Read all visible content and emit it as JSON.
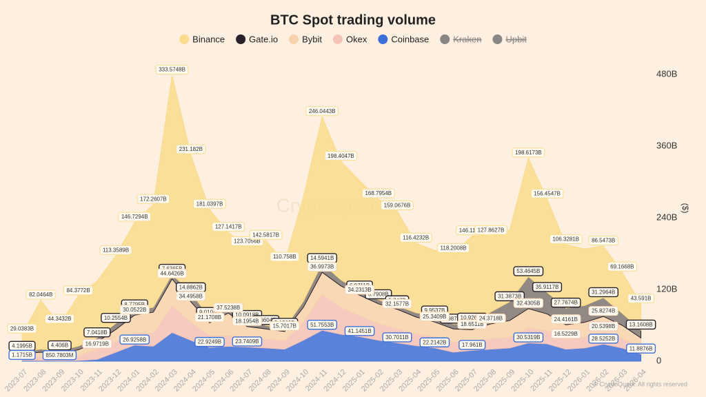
{
  "chart_data": {
    "type": "stacked_area",
    "title": "BTC Spot trading volume",
    "watermark": "CryptoQuant",
    "copyright": "© CryptoQuant. All rights reserved",
    "y_axis_label": "($)",
    "categories": [
      "2023-07",
      "2023-08",
      "2023-09",
      "2023-10",
      "2023-11",
      "2023-12",
      "2024-01",
      "2024-02",
      "2024-03",
      "2024-04",
      "2024-05",
      "2024-06",
      "2024-07",
      "2024-08",
      "2024-09",
      "2024-10",
      "2024-11",
      "2024-12",
      "2025-01",
      "2025-02",
      "2025-03",
      "2025-04",
      "2025-05",
      "2025-06",
      "2025-07",
      "2025-08",
      "2025-09",
      "2025-10",
      "2025-11",
      "2025-12",
      "2026-01",
      "2026-02",
      "2026-03",
      "2026-04"
    ],
    "series": [
      {
        "name": "Binance",
        "color": "#f9dc8c",
        "values": [
          29.0383,
          82.0464,
          44.3432,
          84.3772,
          95,
          113.3589,
          146.7294,
          172.2607,
          333.5748,
          231.182,
          181.0397,
          127.1417,
          123.7056,
          142.5817,
          110.758,
          175,
          246.0443,
          198.4047,
          185,
          168.7954,
          159.0676,
          116.4232,
          110,
          118.2008,
          146.1143,
          127.8627,
          120,
          198.6173,
          156.4547,
          106.3281,
          95,
          86.5473,
          69.1668,
          43.591
        ],
        "value_labels": [
          "29.0383B",
          "82.0464B",
          "44.3432B",
          "84.3772B",
          null,
          "113.3589B",
          "146.7294B",
          "172.2607B",
          "333.5748B",
          "231.182B",
          "181.0397B",
          "127.1417B",
          "123.7056B",
          "142.5817B",
          "110.758B",
          null,
          "246.0443B",
          "198.4047B",
          null,
          "168.7954B",
          "159.0676B",
          "116.4232B",
          null,
          "118.2008B",
          "146.1143B",
          "127.8627B",
          null,
          "198.6173B",
          "156.4547B",
          "106.3281B",
          null,
          "86.5473B",
          "69.1668B",
          "43.591B"
        ]
      },
      {
        "name": "Gate.io",
        "color": "#28212a",
        "values": [
          4.1995,
          5,
          4.406,
          6,
          7.0418,
          10.2554,
          8.7795,
          8,
          7.6365,
          14.8862,
          9.0104,
          8,
          10.0918,
          5.6604,
          5.1263,
          10,
          14.5941,
          10,
          6.9711,
          6.7908,
          5.747,
          7,
          9.9537,
          7.9872,
          10.9266,
          20,
          31.3873,
          53.4645,
          35.9117,
          27.7674,
          28,
          31.2964,
          20,
          13.1608
        ],
        "value_labels": [
          "4.1995B",
          null,
          "4.406B",
          null,
          "7.0418B",
          "10.2554B",
          "8.7795B",
          null,
          "7.6365B",
          "14.8862B",
          "9.0104B",
          null,
          "10.0918B",
          "5.6604B",
          "5.1263B",
          null,
          "14.5941B",
          null,
          "6.9711B",
          "6.7908B",
          "5.747B",
          null,
          "9.9537B",
          "7.9872B",
          "10.9266B",
          null,
          "31.3873B",
          "53.4645B",
          "35.9117B",
          "27.7674B",
          null,
          "31.2964B",
          null,
          "13.1608B"
        ]
      },
      {
        "name": "Bybit",
        "color": "#f7d3ad",
        "values": [
          5,
          8,
          6,
          10,
          12,
          20,
          30.0522,
          35,
          44.6426,
          34.4958,
          21.1708,
          37.5238,
          18.1954,
          17,
          15.7017,
          25,
          36.9973,
          36,
          34.2313,
          33,
          32.1577,
          28,
          25.3409,
          22,
          18.6511,
          24.3718,
          28,
          32.4305,
          28,
          24.4161,
          25,
          25.8274,
          22,
          15
        ],
        "value_labels": [
          null,
          null,
          null,
          null,
          null,
          null,
          "30.0522B",
          null,
          "44.6426B",
          "34.4958B",
          "21.1708B",
          "37.5238B",
          "18.1954B",
          null,
          "15.7017B",
          null,
          "36.9973B",
          null,
          "34.2313B",
          null,
          "32.1577B",
          null,
          "25.3409B",
          null,
          "18.6511B",
          "24.3718B",
          null,
          "32.4305B",
          null,
          "24.4161B",
          null,
          "25.8274B",
          null,
          null
        ]
      },
      {
        "name": "Okex",
        "color": "#f5c3b8",
        "values": [
          6,
          6,
          6,
          8,
          16.9719,
          18,
          20,
          22,
          45,
          30,
          20,
          18,
          16,
          15,
          14,
          30,
          60,
          45,
          35,
          28,
          24,
          20,
          18,
          17,
          16,
          18,
          18,
          25,
          22,
          16.5229,
          18,
          20.5398,
          16,
          12
        ],
        "value_labels": [
          null,
          null,
          null,
          null,
          "16.9719B",
          null,
          null,
          null,
          null,
          null,
          null,
          null,
          null,
          null,
          null,
          null,
          null,
          null,
          null,
          null,
          null,
          null,
          null,
          null,
          null,
          null,
          null,
          null,
          null,
          "16.5229B",
          null,
          "20.5398B",
          null,
          null
        ]
      },
      {
        "name": "Coinbase",
        "color": "#3d6fd8",
        "values": [
          1.1715,
          1,
          0.8507803,
          1,
          3,
          15,
          26.9258,
          25,
          48,
          35,
          22.9249,
          25,
          23.7409,
          22,
          20,
          35,
          51.7553,
          45,
          41.1451,
          35,
          30.7011,
          26,
          22.2142,
          15,
          17.961,
          20,
          22,
          30.5319,
          29,
          20,
          22,
          28.5252,
          22,
          11.8876
        ],
        "value_labels": [
          "1.1715B",
          null,
          "850.7803M",
          null,
          null,
          null,
          "26.9258B",
          null,
          null,
          null,
          "22.9249B",
          null,
          "23.7409B",
          null,
          null,
          null,
          "51.7553B",
          null,
          "41.1451B",
          null,
          "30.7011B",
          null,
          "22.2142B",
          null,
          "17.961B",
          null,
          null,
          "30.5319B",
          null,
          null,
          null,
          "28.5252B",
          null,
          "11.8876B"
        ]
      }
    ],
    "hidden_series": [
      {
        "name": "Kraken",
        "color": "#8a8684"
      },
      {
        "name": "Upbit",
        "color": "#8a8684"
      }
    ],
    "ylim": [
      0,
      500
    ],
    "yticks": [
      0,
      {
        "value": 120,
        "label": "120B"
      },
      {
        "value": 240,
        "label": "240B"
      },
      {
        "value": 360,
        "label": "360B"
      },
      {
        "value": 480,
        "label": "480B"
      }
    ],
    "grid": false,
    "legend": "top"
  }
}
